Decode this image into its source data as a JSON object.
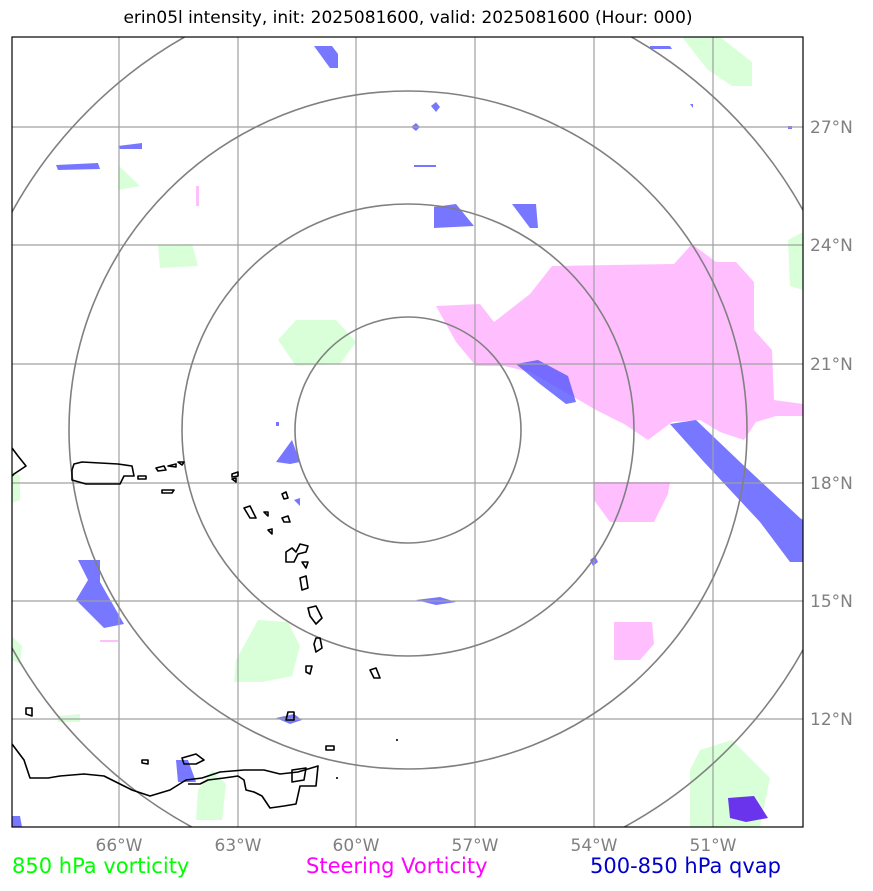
{
  "title": "erin05l intensity, init: 2025081600, valid: 2025081600 (Hour: 000)",
  "axes": {
    "lon_ticks": [
      "66°W",
      "63°W",
      "60°W",
      "57°W",
      "54°W",
      "51°W"
    ],
    "lat_ticks": [
      "27°N",
      "24°N",
      "21°N",
      "18°N",
      "15°N",
      "12°N"
    ],
    "lon_range": [
      -68.7,
      -48.7
    ],
    "lat_range": [
      9.9,
      29.9
    ],
    "gridlines": true
  },
  "legend": [
    {
      "label": "850 hPa vorticity",
      "color": "#00ff00"
    },
    {
      "label": "Steering Vorticity",
      "color": "#ff00ff"
    },
    {
      "label": "500-850 hPa qvap",
      "color": "#0000cc"
    }
  ],
  "colors": {
    "vort850_fill": "#ccffcc",
    "steering_fill": "#ffaaff",
    "qvap_fill": "#5555ff",
    "qvap_core": "#5511ee",
    "grid": "#a0a0a0",
    "range_rings": "#808080",
    "coastline": "#000000"
  },
  "storm_center": {
    "lon": -58.8,
    "lat": 19.3
  },
  "range_rings_deg": [
    2.7,
    5.7,
    8.6,
    11.4
  ]
}
